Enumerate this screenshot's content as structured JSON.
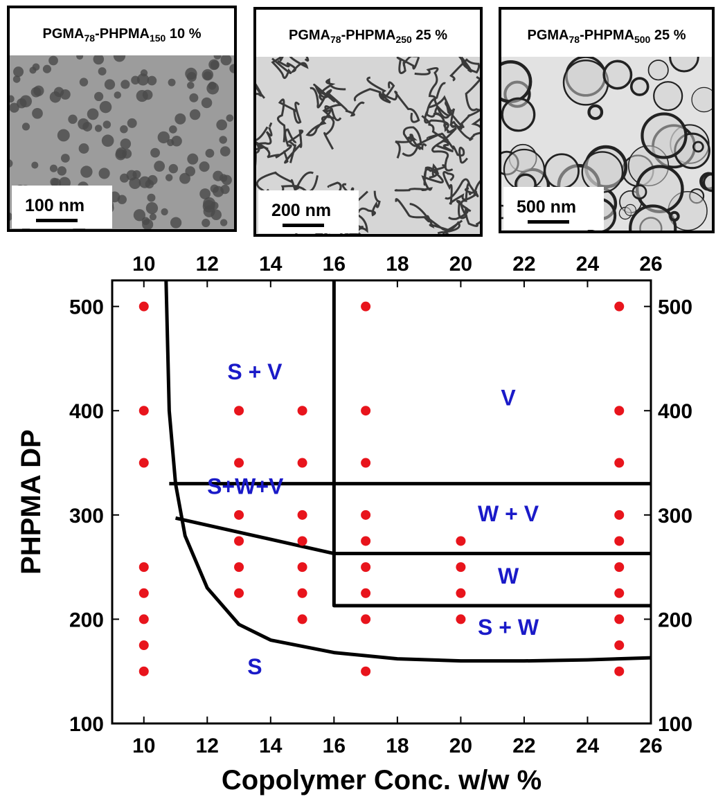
{
  "panels": [
    {
      "title_parts": [
        "PGMA",
        "78",
        "-PHPMA",
        "150",
        " 10 %"
      ],
      "scale_bar": "100 nm"
    },
    {
      "title_parts": [
        "PGMA",
        "78",
        "-PHPMA",
        "250",
        " 25 %"
      ],
      "scale_bar": "200 nm"
    },
    {
      "title_parts": [
        "PGMA",
        "78",
        "-PHPMA",
        "500",
        " 25 %"
      ],
      "scale_bar": "500 nm"
    }
  ],
  "chart_data": {
    "type": "scatter",
    "xlabel": "Copolymer Conc. w/w %",
    "ylabel": "PHPMA DP",
    "xlim": [
      9,
      26
    ],
    "ylim": [
      100,
      525
    ],
    "xticks": [
      10,
      12,
      14,
      16,
      18,
      20,
      22,
      24,
      26
    ],
    "yticks": [
      100,
      200,
      300,
      400,
      500
    ],
    "mirror_axes": true,
    "series": [
      {
        "color": "#e8141c",
        "x": [
          10,
          10,
          10,
          10,
          10,
          10,
          10,
          10,
          13,
          13,
          13,
          13,
          13,
          13,
          15,
          15,
          15,
          15,
          15,
          15,
          15,
          17,
          17,
          17,
          17,
          17,
          17,
          17,
          17,
          17,
          20,
          20,
          20,
          20,
          25,
          25,
          25,
          25,
          25,
          25,
          25,
          25,
          25,
          25
        ],
        "values": [
          500,
          400,
          350,
          250,
          225,
          200,
          175,
          150,
          400,
          350,
          300,
          275,
          250,
          225,
          400,
          350,
          300,
          275,
          250,
          225,
          200,
          500,
          400,
          350,
          300,
          275,
          250,
          225,
          200,
          150,
          275,
          250,
          225,
          200,
          500,
          400,
          350,
          300,
          275,
          250,
          225,
          200,
          175,
          150
        ]
      }
    ],
    "boundaries": [
      {
        "color": "#000000",
        "x": [
          10.7,
          10.8,
          11,
          11.3,
          12,
          13,
          14,
          16,
          18,
          20,
          22,
          24,
          26
        ],
        "values": [
          525,
          400,
          330,
          280,
          230,
          195,
          180,
          168,
          162,
          160,
          160,
          161,
          163
        ]
      },
      {
        "color": "#000000",
        "x": [
          10.8,
          26
        ],
        "values": [
          330,
          330
        ]
      },
      {
        "color": "#000000",
        "x": [
          11,
          16,
          26
        ],
        "values": [
          297,
          263,
          263
        ]
      },
      {
        "color": "#000000",
        "x": [
          16,
          16,
          26
        ],
        "values": [
          525,
          213,
          213
        ]
      }
    ],
    "annotations": [
      "S + V",
      "V",
      "S+W+V",
      "W + V",
      "W",
      "S + W",
      "S"
    ],
    "annotation_color": "#1a1ac8"
  }
}
